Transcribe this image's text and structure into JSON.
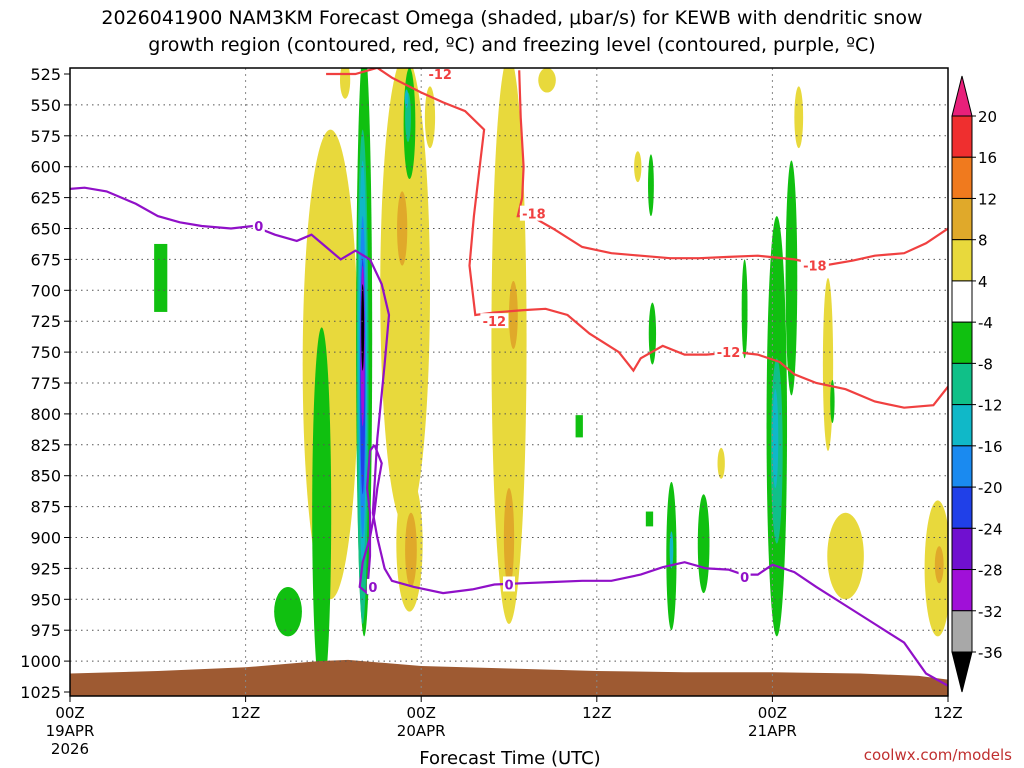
{
  "chart_data": {
    "type": "heatmap",
    "title_line1": "2026041900 NAM3KM Forecast Omega (shaded, μbar/s) for KEWB with dendritic snow",
    "title_line2": "growth region (contoured, red, ºC) and freezing level (contoured, purple, ºC)",
    "xlabel": "Forecast Time (UTC)",
    "credit": "coolwx.com/models",
    "x_ticks": [
      {
        "hour": 0,
        "label": "00Z",
        "sub1": "19APR",
        "sub2": "2026"
      },
      {
        "hour": 12,
        "label": "12Z",
        "sub1": "",
        "sub2": ""
      },
      {
        "hour": 24,
        "label": "00Z",
        "sub1": "20APR",
        "sub2": ""
      },
      {
        "hour": 36,
        "label": "12Z",
        "sub1": "",
        "sub2": ""
      },
      {
        "hour": 48,
        "label": "00Z",
        "sub1": "21APR",
        "sub2": ""
      },
      {
        "hour": 60,
        "label": "12Z",
        "sub1": "",
        "sub2": ""
      }
    ],
    "xlim": [
      0,
      60
    ],
    "y_ticks": [
      "525",
      "550",
      "575",
      "600",
      "625",
      "650",
      "675",
      "700",
      "725",
      "750",
      "775",
      "800",
      "825",
      "850",
      "875",
      "900",
      "925",
      "950",
      "975",
      "1000",
      "1025"
    ],
    "ylim": [
      525,
      1025
    ],
    "y_axis": "pressure (hPa), increasing downward",
    "grid": true,
    "colorbar": {
      "position": "right",
      "labels": [
        "20",
        "16",
        "12",
        "8",
        "4",
        "-4",
        "-8",
        "-12",
        "-16",
        "-20",
        "-24",
        "-28",
        "-32",
        "-36"
      ],
      "bins": [
        {
          "min": 20,
          "max": null,
          "color": "#e8207a"
        },
        {
          "min": 16,
          "max": 20,
          "color": "#ef2f2f"
        },
        {
          "min": 12,
          "max": 16,
          "color": "#f07a1e"
        },
        {
          "min": 8,
          "max": 12,
          "color": "#e0a92a"
        },
        {
          "min": 4,
          "max": 8,
          "color": "#e8d93c"
        },
        {
          "min": -4,
          "max": 4,
          "color": "#ffffff"
        },
        {
          "min": -8,
          "max": -4,
          "color": "#10c010"
        },
        {
          "min": -12,
          "max": -8,
          "color": "#10c088"
        },
        {
          "min": -16,
          "max": -12,
          "color": "#10b8c8"
        },
        {
          "min": -20,
          "max": -16,
          "color": "#1a8af0"
        },
        {
          "min": -24,
          "max": -20,
          "color": "#2040e8"
        },
        {
          "min": -28,
          "max": -24,
          "color": "#7010d0"
        },
        {
          "min": -32,
          "max": -28,
          "color": "#a010d8"
        },
        {
          "min": -36,
          "max": -32,
          "color": "#a8a8a8"
        },
        {
          "min": null,
          "max": -36,
          "color": "#000000"
        }
      ]
    },
    "omega_regions": [
      {
        "t": 6.2,
        "p": 690,
        "dt": 0.9,
        "dp": 55,
        "bin": -4,
        "shape": "rect"
      },
      {
        "t": 17.8,
        "p": 760,
        "dt": 3.8,
        "dp": 380,
        "bin": 4
      },
      {
        "t": 18.8,
        "p": 530,
        "dt": 0.7,
        "dp": 30,
        "bin": 4
      },
      {
        "t": 22.9,
        "p": 700,
        "dt": 3.4,
        "dp": 380,
        "bin": 4
      },
      {
        "t": 23.2,
        "p": 905,
        "dt": 1.8,
        "dp": 110,
        "bin": 4
      },
      {
        "t": 24.6,
        "p": 560,
        "dt": 0.7,
        "dp": 50,
        "bin": 4
      },
      {
        "t": 30.0,
        "p": 740,
        "dt": 2.4,
        "dp": 460,
        "bin": 4
      },
      {
        "t": 32.6,
        "p": 530,
        "dt": 1.2,
        "dp": 20,
        "bin": 4
      },
      {
        "t": 49.8,
        "p": 560,
        "dt": 0.6,
        "dp": 50,
        "bin": 4
      },
      {
        "t": 51.8,
        "p": 760,
        "dt": 0.7,
        "dp": 140,
        "bin": 4
      },
      {
        "t": 53.0,
        "p": 915,
        "dt": 2.5,
        "dp": 70,
        "bin": 4
      },
      {
        "t": 59.3,
        "p": 925,
        "dt": 1.8,
        "dp": 110,
        "bin": 4
      },
      {
        "t": 44.5,
        "p": 840,
        "dt": 0.5,
        "dp": 25,
        "bin": 4
      },
      {
        "t": 38.8,
        "p": 600,
        "dt": 0.5,
        "dp": 25,
        "bin": 4
      },
      {
        "t": 22.7,
        "p": 650,
        "dt": 0.7,
        "dp": 60,
        "bin": 8
      },
      {
        "t": 23.3,
        "p": 910,
        "dt": 0.8,
        "dp": 60,
        "bin": 8
      },
      {
        "t": 30.3,
        "p": 720,
        "dt": 0.6,
        "dp": 55,
        "bin": 8
      },
      {
        "t": 30.0,
        "p": 900,
        "dt": 0.7,
        "dp": 80,
        "bin": 8
      },
      {
        "t": 59.4,
        "p": 922,
        "dt": 0.6,
        "dp": 30,
        "bin": 8
      },
      {
        "t": 17.2,
        "p": 880,
        "dt": 1.3,
        "dp": 300,
        "bin": -4
      },
      {
        "t": 14.9,
        "p": 960,
        "dt": 1.9,
        "dp": 40,
        "bin": -4
      },
      {
        "t": 23.2,
        "p": 565,
        "dt": 0.8,
        "dp": 90,
        "bin": -4
      },
      {
        "t": 20.1,
        "p": 740,
        "dt": 1.1,
        "dp": 480,
        "bin": -4
      },
      {
        "t": 34.8,
        "p": 810,
        "dt": 0.5,
        "dp": 18,
        "bin": -4,
        "shape": "rect"
      },
      {
        "t": 39.7,
        "p": 615,
        "dt": 0.4,
        "dp": 50,
        "bin": -4
      },
      {
        "t": 39.8,
        "p": 735,
        "dt": 0.5,
        "dp": 50,
        "bin": -4
      },
      {
        "t": 41.1,
        "p": 915,
        "dt": 0.7,
        "dp": 120,
        "bin": -4
      },
      {
        "t": 43.3,
        "p": 905,
        "dt": 0.8,
        "dp": 80,
        "bin": -4
      },
      {
        "t": 46.1,
        "p": 715,
        "dt": 0.4,
        "dp": 80,
        "bin": -4
      },
      {
        "t": 48.3,
        "p": 810,
        "dt": 1.4,
        "dp": 340,
        "bin": -4
      },
      {
        "t": 49.3,
        "p": 690,
        "dt": 0.8,
        "dp": 190,
        "bin": -4
      },
      {
        "t": 52.1,
        "p": 790,
        "dt": 0.3,
        "dp": 35,
        "bin": -4
      },
      {
        "t": 39.6,
        "p": 885,
        "dt": 0.5,
        "dp": 12,
        "bin": -4,
        "shape": "rect"
      },
      {
        "t": 20.0,
        "p": 770,
        "dt": 0.8,
        "dp": 400,
        "bin": -8
      },
      {
        "t": 23.1,
        "p": 560,
        "dt": 0.4,
        "dp": 40,
        "bin": -8
      },
      {
        "t": 48.3,
        "p": 830,
        "dt": 0.8,
        "dp": 150,
        "bin": -8
      },
      {
        "t": 20.0,
        "p": 760,
        "dt": 0.6,
        "dp": 330,
        "bin": -12
      },
      {
        "t": 23.0,
        "p": 545,
        "dt": 0.25,
        "dp": 15,
        "bin": -12
      },
      {
        "t": 48.2,
        "p": 820,
        "dt": 0.4,
        "dp": 80,
        "bin": -12
      },
      {
        "t": 41.1,
        "p": 910,
        "dt": 0.25,
        "dp": 30,
        "bin": -12
      },
      {
        "t": 20.0,
        "p": 770,
        "dt": 0.45,
        "dp": 260,
        "bin": -16
      },
      {
        "t": 20.0,
        "p": 770,
        "dt": 0.35,
        "dp": 190,
        "bin": -20
      },
      {
        "t": 20.0,
        "p": 745,
        "dt": 0.28,
        "dp": 130,
        "bin": -28
      },
      {
        "t": 20.0,
        "p": 730,
        "dt": 0.2,
        "dp": 70,
        "bin": -36
      }
    ],
    "dgz_contours": [
      {
        "label": "-12",
        "label_at": [
          25.3,
          525
        ],
        "points": [
          [
            17.5,
            525
          ],
          [
            19.5,
            525
          ],
          [
            21.0,
            520
          ],
          [
            22.0,
            528
          ],
          [
            24.0,
            540
          ],
          [
            25.5,
            548
          ],
          [
            27.0,
            555
          ],
          [
            28.3,
            570
          ],
          [
            28.0,
            600
          ],
          [
            27.6,
            640
          ],
          [
            27.3,
            680
          ],
          [
            27.7,
            720
          ],
          [
            29.0,
            718
          ],
          [
            31.0,
            716
          ],
          [
            32.5,
            715
          ],
          [
            34.0,
            720
          ],
          [
            35.5,
            735
          ],
          [
            37.5,
            750
          ],
          [
            38.5,
            765
          ],
          [
            39.0,
            755
          ],
          [
            40.5,
            745
          ],
          [
            42.0,
            752
          ],
          [
            43.5,
            752
          ],
          [
            45.5,
            750
          ],
          [
            47.0,
            752
          ],
          [
            48.5,
            758
          ],
          [
            49.5,
            768
          ],
          [
            51.0,
            775
          ],
          [
            53.0,
            780
          ],
          [
            55.0,
            790
          ],
          [
            57.0,
            795
          ],
          [
            59.0,
            793
          ],
          [
            60.0,
            778
          ]
        ],
        "extra_labels": [
          {
            "label": "-12",
            "at": [
              29.0,
              725
            ]
          },
          {
            "label": "-12",
            "at": [
              45.0,
              750
            ]
          }
        ]
      },
      {
        "label": "-18",
        "label_at": [
          31.7,
          638
        ],
        "points": [
          [
            30.7,
            522
          ],
          [
            30.8,
            560
          ],
          [
            31.0,
            600
          ],
          [
            30.9,
            625
          ],
          [
            30.6,
            640
          ],
          [
            31.5,
            640
          ],
          [
            33.0,
            650
          ],
          [
            35.0,
            665
          ],
          [
            37.0,
            670
          ],
          [
            39.0,
            672
          ],
          [
            41.0,
            674
          ],
          [
            43.0,
            674
          ],
          [
            45.0,
            673
          ],
          [
            47.0,
            672
          ],
          [
            49.5,
            675
          ],
          [
            51.5,
            680
          ],
          [
            53.5,
            676
          ],
          [
            55.0,
            672
          ],
          [
            57.0,
            670
          ],
          [
            58.5,
            662
          ],
          [
            60.0,
            650
          ]
        ],
        "extra_labels": [
          {
            "label": "-18",
            "at": [
              50.9,
              680
            ]
          }
        ]
      }
    ],
    "freezing_contours": [
      {
        "label": "0",
        "points": [
          [
            0,
            618
          ],
          [
            1,
            617
          ],
          [
            2.5,
            620
          ],
          [
            4.5,
            630
          ],
          [
            6.0,
            640
          ],
          [
            7.5,
            645
          ],
          [
            9.0,
            648
          ],
          [
            11.0,
            650
          ],
          [
            12.5,
            648
          ],
          [
            14.0,
            655
          ],
          [
            15.5,
            660
          ],
          [
            16.5,
            655
          ],
          [
            17.5,
            665
          ],
          [
            18.5,
            675
          ],
          [
            19.5,
            668
          ],
          [
            20.5,
            675
          ],
          [
            21.3,
            695
          ],
          [
            21.8,
            720
          ],
          [
            21.5,
            760
          ],
          [
            21.0,
            820
          ],
          [
            20.7,
            880
          ],
          [
            21.0,
            900
          ],
          [
            21.5,
            925
          ],
          [
            22.0,
            935
          ],
          [
            23.5,
            940
          ],
          [
            25.5,
            945
          ],
          [
            27.5,
            942
          ],
          [
            29.0,
            938
          ],
          [
            31.0,
            937
          ],
          [
            33.0,
            936
          ],
          [
            35.0,
            935
          ],
          [
            37.0,
            935
          ],
          [
            39.0,
            930
          ],
          [
            40.5,
            924
          ],
          [
            42.0,
            920
          ],
          [
            43.5,
            925
          ],
          [
            45.0,
            926
          ],
          [
            46.0,
            930
          ],
          [
            47.0,
            930
          ],
          [
            48.0,
            922
          ],
          [
            49.5,
            928
          ],
          [
            51.0,
            940
          ],
          [
            53.0,
            955
          ],
          [
            55.0,
            970
          ],
          [
            57.0,
            985
          ],
          [
            58.5,
            1010
          ],
          [
            60.0,
            1020
          ]
        ],
        "labels": [
          {
            "label": "0",
            "at": [
              12.9,
              648
            ]
          },
          {
            "label": "0",
            "at": [
              30.0,
              938
            ]
          },
          {
            "label": "0",
            "at": [
              46.1,
              932
            ]
          }
        ]
      },
      {
        "label": "0",
        "points": [
          [
            20.8,
            825
          ],
          [
            21.3,
            840
          ],
          [
            21.0,
            860
          ],
          [
            20.8,
            880
          ],
          [
            20.5,
            900
          ],
          [
            20.0,
            920
          ],
          [
            19.8,
            940
          ],
          [
            20.3,
            945
          ],
          [
            20.5,
            915
          ],
          [
            20.5,
            880
          ],
          [
            20.3,
            860
          ],
          [
            20.5,
            830
          ],
          [
            20.8,
            825
          ]
        ],
        "labels": [
          {
            "label": "0",
            "at": [
              20.7,
              940
            ]
          }
        ]
      }
    ],
    "terrain": {
      "top_pressure": [
        [
          0,
          1010
        ],
        [
          6,
          1008
        ],
        [
          12,
          1005
        ],
        [
          17,
          1000
        ],
        [
          19,
          999
        ],
        [
          21,
          1001
        ],
        [
          24,
          1004
        ],
        [
          30,
          1006
        ],
        [
          36,
          1008
        ],
        [
          42,
          1009
        ],
        [
          48,
          1009
        ],
        [
          54,
          1010
        ],
        [
          58,
          1012
        ],
        [
          60,
          1015
        ]
      ],
      "bottom_pressure": 1025,
      "color": "#9e5a32"
    }
  }
}
